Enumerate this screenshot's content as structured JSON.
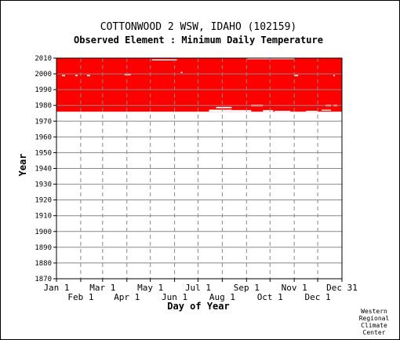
{
  "chart_data": {
    "type": "scatter",
    "title": "COTTONWOOD 2 WSW, IDAHO   (102159)",
    "subtitle": "Observed Element : Minimum Daily Temperature",
    "xlabel": "Day of Year",
    "ylabel": "Year",
    "xlim": [
      1,
      366
    ],
    "ylim": [
      1870,
      2010
    ],
    "y_ticks": [
      1870,
      1880,
      1890,
      1900,
      1910,
      1920,
      1930,
      1940,
      1950,
      1960,
      1970,
      1980,
      1990,
      2000,
      2010
    ],
    "x_ticks_upper": [
      {
        "label": "Jan 1",
        "day": 1
      },
      {
        "label": "Mar 1",
        "day": 60
      },
      {
        "label": "May 1",
        "day": 121
      },
      {
        "label": "Jul 1",
        "day": 182
      },
      {
        "label": "Sep 1",
        "day": 244
      },
      {
        "label": "Nov 1",
        "day": 305
      },
      {
        "label": "Dec 31",
        "day": 366
      }
    ],
    "x_ticks_lower": [
      {
        "label": "Feb 1",
        "day": 32
      },
      {
        "label": "Apr 1",
        "day": 91
      },
      {
        "label": "Jun 1",
        "day": 152
      },
      {
        "label": "Aug 1",
        "day": 213
      },
      {
        "label": "Oct 1",
        "day": 274
      },
      {
        "label": "Dec 1",
        "day": 335
      }
    ],
    "grid": true,
    "data_color": "#ff0000",
    "records": [
      {
        "days": [
          1,
          366
        ],
        "years": [
          1976,
          2010
        ]
      }
    ],
    "gaps": [
      {
        "days": [
          123,
          155
        ],
        "years": [
          2008.5,
          2009.2
        ]
      },
      {
        "days": [
          245,
          305
        ],
        "years": [
          2009.3,
          2010
        ]
      },
      {
        "days": [
          8,
          12
        ],
        "years": [
          1998.5,
          1999.3
        ]
      },
      {
        "days": [
          25,
          28
        ],
        "years": [
          1998.5,
          1999.3
        ]
      },
      {
        "days": [
          40,
          44
        ],
        "years": [
          1998.5,
          1999.3
        ]
      },
      {
        "days": [
          88,
          96
        ],
        "years": [
          1999.2,
          2000
        ]
      },
      {
        "days": [
          160,
          162
        ],
        "years": [
          2000.5,
          2001.3
        ]
      },
      {
        "days": [
          305,
          310
        ],
        "years": [
          1998.5,
          1999.3
        ]
      },
      {
        "days": [
          355,
          357
        ],
        "years": [
          1998.5,
          1999.3
        ]
      },
      {
        "days": [
          196,
          225
        ],
        "years": [
          1976,
          1977.3
        ]
      },
      {
        "days": [
          205,
          225
        ],
        "years": [
          1978.2,
          1979
        ]
      },
      {
        "days": [
          225,
          250
        ],
        "years": [
          1976,
          1977
        ]
      },
      {
        "days": [
          250,
          265
        ],
        "years": [
          1979.5,
          1980.4
        ]
      },
      {
        "days": [
          265,
          278
        ],
        "years": [
          1976,
          1977
        ]
      },
      {
        "days": [
          280,
          300
        ],
        "years": [
          1976,
          1976.6
        ]
      },
      {
        "days": [
          320,
          335
        ],
        "years": [
          1976,
          1976.6
        ]
      },
      {
        "days": [
          340,
          352
        ],
        "years": [
          1976.6,
          1977.3
        ]
      },
      {
        "days": [
          345,
          352
        ],
        "years": [
          1979.5,
          1980.4
        ]
      },
      {
        "days": [
          355,
          360
        ],
        "years": [
          1979.5,
          1980.4
        ]
      }
    ]
  },
  "credit": [
    "Western",
    "Regional",
    "Climate",
    "Center"
  ]
}
